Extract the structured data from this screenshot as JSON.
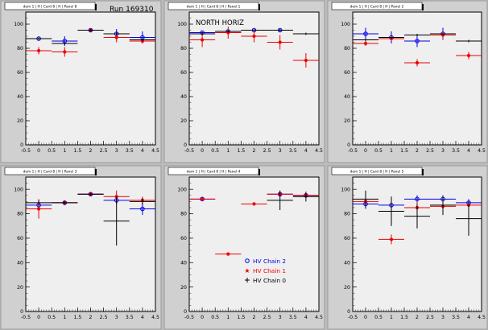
{
  "run_label": "Run 169310",
  "colors": {
    "chain2": "#0000ee",
    "chain1": "#ee0000",
    "chain0": "#000000",
    "pad": "#efefef",
    "frame": "#d0d0d0"
  },
  "legend": {
    "entries": [
      {
        "label": "HV Chain 2",
        "color": "#0000ee",
        "marker": "circle"
      },
      {
        "label": "HV Chain 1",
        "color": "#ee0000",
        "marker": "star"
      },
      {
        "label": "HV Chain 0",
        "color": "#000000",
        "marker": "cross"
      }
    ]
  },
  "chart_data": [
    {
      "type": "scatter",
      "title": "dem 1 | H | Card 8 | H | Panel 8",
      "annotation": "",
      "xlim": [
        -0.5,
        4.5
      ],
      "ylim": [
        0,
        110
      ],
      "xticks": [
        "-0.5",
        "0",
        "0.5",
        "1",
        "1.5",
        "2",
        "2.5",
        "3",
        "3.5",
        "4",
        "4.5"
      ],
      "yticks": [
        "0",
        "20",
        "40",
        "60",
        "80",
        "100"
      ],
      "series": [
        {
          "key": "chain2",
          "points": [
            [
              0,
              88,
              0
            ],
            [
              1,
              86,
              4
            ],
            [
              2,
              95,
              1
            ],
            [
              3,
              92,
              4
            ],
            [
              4,
              89,
              5
            ]
          ]
        },
        {
          "key": "chain1",
          "points": [
            [
              0,
              78,
              3
            ],
            [
              1,
              77,
              4
            ],
            [
              2,
              95,
              1
            ],
            [
              3,
              89,
              4
            ],
            [
              4,
              86,
              2
            ]
          ]
        },
        {
          "key": "chain0",
          "points": [
            [
              0,
              88,
              1
            ],
            [
              1,
              84,
              1
            ],
            [
              2,
              95,
              1
            ],
            [
              3,
              92,
              1
            ],
            [
              4,
              87,
              1
            ]
          ]
        }
      ]
    },
    {
      "type": "scatter",
      "title": "dem 1 | H | Card 8 | H | Panel 1",
      "annotation": "NORTH HORIZ",
      "xlim": [
        -0.5,
        4.5
      ],
      "ylim": [
        0,
        110
      ],
      "xticks": [
        "-0.5",
        "0",
        "0.5",
        "1",
        "1.5",
        "2",
        "2.5",
        "3",
        "3.5",
        "4",
        "4.5"
      ],
      "yticks": [
        "0",
        "20",
        "40",
        "60",
        "80",
        "100"
      ],
      "series": [
        {
          "key": "chain2",
          "points": [
            [
              0,
              93,
              1
            ],
            [
              1,
              94,
              1
            ],
            [
              2,
              95,
              1
            ],
            [
              3,
              95,
              1
            ]
          ]
        },
        {
          "key": "chain1",
          "points": [
            [
              0,
              87,
              6
            ],
            [
              1,
              93,
              5
            ],
            [
              2,
              90,
              5
            ],
            [
              3,
              85,
              6
            ],
            [
              4,
              70,
              6
            ]
          ]
        },
        {
          "key": "chain0",
          "points": [
            [
              0,
              92,
              1
            ],
            [
              1,
              94,
              1
            ],
            [
              2,
              95,
              1
            ],
            [
              3,
              95,
              1
            ],
            [
              4,
              92,
              1
            ]
          ]
        }
      ]
    },
    {
      "type": "scatter",
      "title": "dem 1 | H | Card 8 | H | Panel 2",
      "annotation": "",
      "xlim": [
        -0.5,
        4.5
      ],
      "ylim": [
        0,
        110
      ],
      "xticks": [
        "-0.5",
        "0",
        "0.5",
        "1",
        "1.5",
        "2",
        "2.5",
        "3",
        "3.5",
        "4",
        "4.5"
      ],
      "yticks": [
        "0",
        "20",
        "40",
        "60",
        "80",
        "100"
      ],
      "series": [
        {
          "key": "chain2",
          "points": [
            [
              0,
              92,
              5
            ],
            [
              1,
              89,
              5
            ],
            [
              2,
              86,
              5
            ],
            [
              3,
              92,
              5
            ]
          ]
        },
        {
          "key": "chain1",
          "points": [
            [
              0,
              84,
              2
            ],
            [
              1,
              88,
              2
            ],
            [
              2,
              68,
              3
            ],
            [
              3,
              91,
              3
            ],
            [
              4,
              74,
              3
            ]
          ]
        },
        {
          "key": "chain0",
          "points": [
            [
              0,
              87,
              1
            ],
            [
              1,
              89,
              1
            ],
            [
              2,
              91,
              1
            ],
            [
              3,
              92,
              1
            ],
            [
              4,
              86,
              1
            ]
          ]
        }
      ]
    },
    {
      "type": "scatter",
      "title": "dem 1 | H | Card 8 | H | Panel 3",
      "annotation": "",
      "xlim": [
        -0.5,
        4.5
      ],
      "ylim": [
        0,
        110
      ],
      "xticks": [
        "-0.5",
        "0",
        "0.5",
        "1",
        "1.5",
        "2",
        "2.5",
        "3",
        "3.5",
        "4",
        "4.5"
      ],
      "yticks": [
        "0",
        "20",
        "40",
        "60",
        "80",
        "100"
      ],
      "series": [
        {
          "key": "chain2",
          "points": [
            [
              0,
              87,
              3
            ],
            [
              1,
              89,
              2
            ],
            [
              2,
              96,
              1
            ],
            [
              3,
              91,
              3
            ],
            [
              4,
              84,
              5
            ]
          ]
        },
        {
          "key": "chain1",
          "points": [
            [
              0,
              84,
              8
            ],
            [
              1,
              89,
              1
            ],
            [
              2,
              96,
              1
            ],
            [
              3,
              94,
              5
            ],
            [
              4,
              91,
              3
            ]
          ]
        },
        {
          "key": "chain0",
          "points": [
            [
              0,
              89,
              2
            ],
            [
              1,
              89,
              1
            ],
            [
              2,
              96,
              1
            ],
            [
              3,
              74,
              20
            ],
            [
              4,
              90,
              3
            ]
          ]
        }
      ]
    },
    {
      "type": "scatter",
      "title": "dem 1 | H | Card 8 | H | Panel 4",
      "annotation": "",
      "xlim": [
        -0.5,
        4.5
      ],
      "ylim": [
        0,
        110
      ],
      "xticks": [
        "-0.5",
        "0",
        "0.5",
        "1",
        "1.5",
        "2",
        "2.5",
        "3",
        "3.5",
        "4",
        "4.5"
      ],
      "yticks": [
        "0",
        "20",
        "40",
        "60",
        "80",
        "100"
      ],
      "series": [
        {
          "key": "chain2",
          "points": [
            [
              0,
              92,
              1
            ],
            [
              3,
              96,
              1
            ],
            [
              4,
              95,
              1
            ]
          ]
        },
        {
          "key": "chain1",
          "points": [
            [
              0,
              92,
              1
            ],
            [
              1,
              47,
              1
            ],
            [
              2,
              88,
              1
            ],
            [
              3,
              96,
              2
            ],
            [
              4,
              95,
              2
            ]
          ]
        },
        {
          "key": "chain0",
          "points": [
            [
              3,
              91,
              8
            ],
            [
              4,
              94,
              4
            ]
          ]
        }
      ]
    },
    {
      "type": "scatter",
      "title": "dem 1 | H | Card 8 | H | Panel 5",
      "annotation": "",
      "xlim": [
        -0.5,
        4.5
      ],
      "ylim": [
        0,
        110
      ],
      "xticks": [
        "-0.5",
        "0",
        "0.5",
        "1",
        "1.5",
        "2",
        "2.5",
        "3",
        "3.5",
        "4",
        "4.5"
      ],
      "yticks": [
        "0",
        "20",
        "40",
        "60",
        "80",
        "100"
      ],
      "series": [
        {
          "key": "chain2",
          "points": [
            [
              0,
              88,
              4
            ],
            [
              1,
              87,
              4
            ],
            [
              2,
              92,
              3
            ],
            [
              3,
              92,
              3
            ],
            [
              4,
              89,
              3
            ]
          ]
        },
        {
          "key": "chain1",
          "points": [
            [
              0,
              90,
              3
            ],
            [
              1,
              59,
              4
            ],
            [
              2,
              85,
              5
            ],
            [
              3,
              86,
              5
            ],
            [
              4,
              87,
              3
            ]
          ]
        },
        {
          "key": "chain0",
          "points": [
            [
              0,
              92,
              7
            ],
            [
              1,
              82,
              12
            ],
            [
              2,
              78,
              10
            ],
            [
              3,
              87,
              8
            ],
            [
              4,
              76,
              14
            ]
          ]
        }
      ]
    }
  ]
}
